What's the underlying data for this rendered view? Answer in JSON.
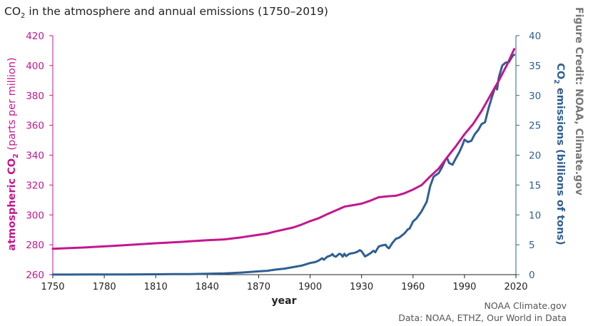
{
  "chart_data": {
    "type": "line",
    "title": {
      "prefix": "CO",
      "sub": "2",
      "suffix": " in the atmosphere and annual emissions (1750–2019)"
    },
    "xlabel": "year",
    "ylabel_left": {
      "prefix": "atmospheric CO",
      "sub": "2",
      "suffix": " (parts per million)"
    },
    "ylabel_right": {
      "prefix": "CO",
      "sub": "2",
      "suffix": " emissions (billions of tons)"
    },
    "xlim": [
      1750,
      2020
    ],
    "ylim_left": [
      260,
      420
    ],
    "ylim_right": [
      0,
      40
    ],
    "x_ticks": [
      "1750",
      "1780",
      "1810",
      "1840",
      "1870",
      "1900",
      "1930",
      "1960",
      "1990",
      "2020"
    ],
    "y_left_ticks": [
      "260",
      "280",
      "300",
      "320",
      "340",
      "360",
      "380",
      "400",
      "420"
    ],
    "y_right_ticks": [
      "0",
      "5",
      "10",
      "15",
      "20",
      "25",
      "30",
      "35",
      "40"
    ],
    "grid": false,
    "series": [
      {
        "axis": "left",
        "color": "#c4168f",
        "x": [
          1750,
          1760,
          1770,
          1780,
          1790,
          1800,
          1810,
          1820,
          1830,
          1840,
          1850,
          1860,
          1870,
          1875,
          1880,
          1890,
          1895,
          1900,
          1905,
          1910,
          1915,
          1920,
          1925,
          1930,
          1935,
          1940,
          1945,
          1950,
          1955,
          1960,
          1965,
          1970,
          1975,
          1980,
          1985,
          1990,
          1995,
          2000,
          2005,
          2010,
          2015,
          2019
        ],
        "values": [
          277.3,
          277.8,
          278.3,
          278.9,
          279.6,
          280.3,
          281.0,
          281.6,
          282.3,
          283.0,
          283.6,
          285.0,
          286.7,
          287.5,
          289.0,
          291.5,
          293.5,
          295.8,
          297.8,
          300.5,
          303.0,
          305.5,
          306.5,
          307.5,
          309.5,
          311.8,
          312.4,
          312.8,
          314.5,
          317.0,
          320.0,
          325.7,
          331.0,
          338.7,
          346.0,
          354.0,
          360.8,
          369.6,
          379.8,
          389.9,
          401.0,
          411.0
        ]
      },
      {
        "axis": "right",
        "color": "#2f5f92",
        "x": [
          1750,
          1760,
          1770,
          1780,
          1790,
          1800,
          1810,
          1820,
          1830,
          1840,
          1850,
          1860,
          1870,
          1875,
          1880,
          1885,
          1890,
          1895,
          1900,
          1903,
          1905,
          1907,
          1908,
          1910,
          1912,
          1913,
          1914,
          1915,
          1917,
          1918,
          1919,
          1920,
          1921,
          1923,
          1925,
          1927,
          1929,
          1930,
          1931,
          1932,
          1933,
          1935,
          1937,
          1938,
          1940,
          1942,
          1944,
          1945,
          1946,
          1948,
          1950,
          1952,
          1955,
          1957,
          1958,
          1960,
          1962,
          1965,
          1968,
          1970,
          1972,
          1975,
          1977,
          1979,
          1980,
          1981,
          1983,
          1985,
          1987,
          1989,
          1990,
          1992,
          1994,
          1996,
          1998,
          2000,
          2002,
          2004,
          2006,
          2008,
          2009,
          2010,
          2012,
          2014,
          2016,
          2018,
          2019
        ],
        "values": [
          0.01,
          0.01,
          0.02,
          0.03,
          0.04,
          0.05,
          0.06,
          0.08,
          0.1,
          0.15,
          0.2,
          0.35,
          0.55,
          0.65,
          0.85,
          1.0,
          1.25,
          1.5,
          1.95,
          2.1,
          2.35,
          2.75,
          2.5,
          3.0,
          3.2,
          3.45,
          3.1,
          3.0,
          3.5,
          3.4,
          3.0,
          3.5,
          3.1,
          3.5,
          3.6,
          3.75,
          4.1,
          3.9,
          3.5,
          3.05,
          3.2,
          3.55,
          4.0,
          3.75,
          4.7,
          4.9,
          5.0,
          4.6,
          4.4,
          5.3,
          6.0,
          6.2,
          6.9,
          7.6,
          7.7,
          8.9,
          9.4,
          10.6,
          12.2,
          14.8,
          16.4,
          17.0,
          18.0,
          19.3,
          19.4,
          18.7,
          18.4,
          19.5,
          20.5,
          21.8,
          22.6,
          22.2,
          22.4,
          23.5,
          24.2,
          25.2,
          25.5,
          27.8,
          29.7,
          31.5,
          31.0,
          33.0,
          35.0,
          35.5,
          35.6,
          36.6,
          36.8
        ]
      }
    ]
  },
  "credits": {
    "vertical": "Figure Credit: NOAA, Climate.gov",
    "line1": "NOAA Climate.gov",
    "line2": "Data: NOAA, ETHZ, Our World in Data"
  },
  "colors": {
    "left_axis": "#c4168f",
    "right_axis": "#2f5f92",
    "credit_text": "#444444"
  }
}
